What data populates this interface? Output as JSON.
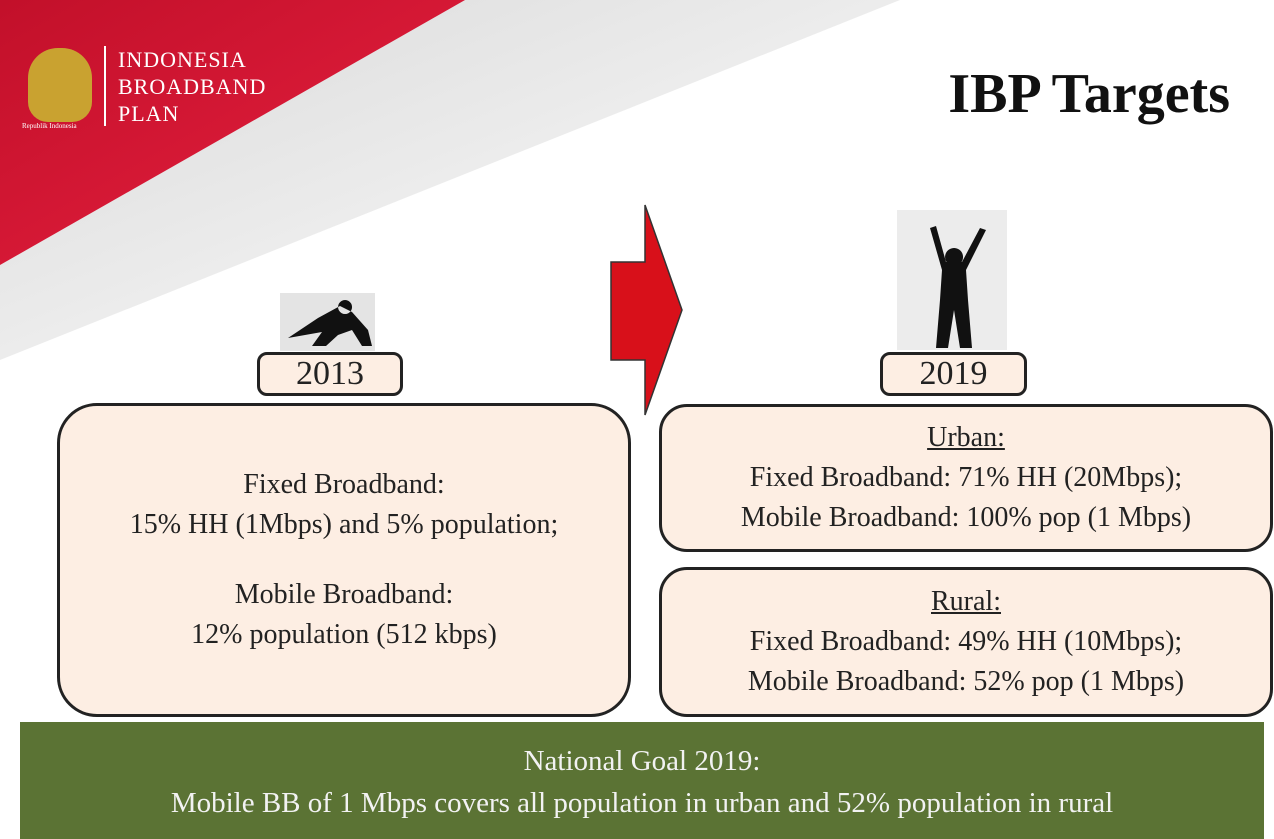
{
  "header": {
    "logo": {
      "lines": [
        "INDONESIA",
        "BROADBAND",
        "PLAN"
      ],
      "caption": "Republik Indonesia"
    },
    "title": "IBP Targets"
  },
  "current": {
    "year": "2013",
    "lines": [
      "Fixed Broadband:",
      "15% HH (1Mbps) and 5% population;",
      "Mobile Broadband:",
      "12% population (512 kbps)"
    ]
  },
  "target": {
    "year": "2019",
    "sections": [
      {
        "heading": "Urban:",
        "lines": [
          "Fixed Broadband: 71% HH (20Mbps);",
          "Mobile Broadband: 100% pop (1 Mbps)"
        ]
      },
      {
        "heading": "Rural:",
        "lines": [
          "Fixed Broadband: 49% HH (10Mbps);",
          "Mobile Broadband: 52% pop (1 Mbps)"
        ]
      }
    ]
  },
  "goal": {
    "lines": [
      "National Goal 2019:",
      "Mobile BB of 1 Mbps covers all population in urban and 52% population in rural"
    ]
  }
}
